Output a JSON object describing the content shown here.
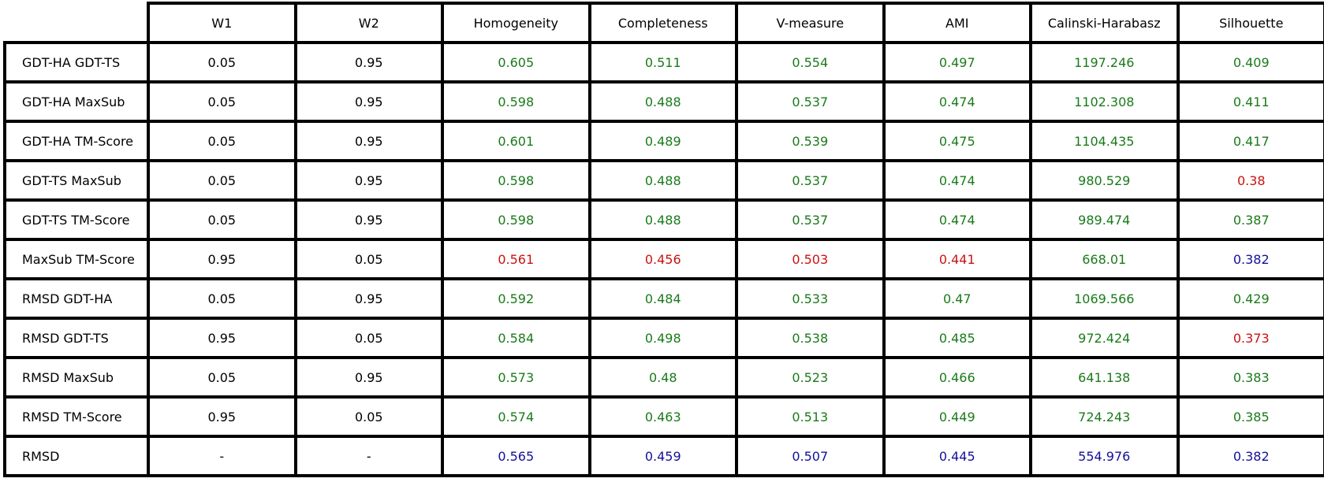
{
  "colors": {
    "best": "#1a7a1a",
    "worst": "#cc1111",
    "baseline": "#11119a",
    "neutral": "#000000"
  },
  "chart_data": {
    "type": "table",
    "columns": [
      "W1",
      "W2",
      "Homogeneity",
      "Completeness",
      "V-measure",
      "AMI",
      "Calinski-Harabasz",
      "Silhouette"
    ],
    "rows": [
      {
        "label": "GDT-HA GDT-TS",
        "values": [
          "0.05",
          "0.95",
          "0.605",
          "0.511",
          "0.554",
          "0.497",
          "1197.246",
          "0.409"
        ],
        "colors": [
          "neutral",
          "neutral",
          "best",
          "best",
          "best",
          "best",
          "best",
          "best"
        ]
      },
      {
        "label": "GDT-HA MaxSub",
        "values": [
          "0.05",
          "0.95",
          "0.598",
          "0.488",
          "0.537",
          "0.474",
          "1102.308",
          "0.411"
        ],
        "colors": [
          "neutral",
          "neutral",
          "best",
          "best",
          "best",
          "best",
          "best",
          "best"
        ]
      },
      {
        "label": "GDT-HA TM-Score",
        "values": [
          "0.05",
          "0.95",
          "0.601",
          "0.489",
          "0.539",
          "0.475",
          "1104.435",
          "0.417"
        ],
        "colors": [
          "neutral",
          "neutral",
          "best",
          "best",
          "best",
          "best",
          "best",
          "best"
        ]
      },
      {
        "label": "GDT-TS MaxSub",
        "values": [
          "0.05",
          "0.95",
          "0.598",
          "0.488",
          "0.537",
          "0.474",
          "980.529",
          "0.38"
        ],
        "colors": [
          "neutral",
          "neutral",
          "best",
          "best",
          "best",
          "best",
          "best",
          "worst"
        ]
      },
      {
        "label": "GDT-TS TM-Score",
        "values": [
          "0.05",
          "0.95",
          "0.598",
          "0.488",
          "0.537",
          "0.474",
          "989.474",
          "0.387"
        ],
        "colors": [
          "neutral",
          "neutral",
          "best",
          "best",
          "best",
          "best",
          "best",
          "best"
        ]
      },
      {
        "label": "MaxSub TM-Score",
        "values": [
          "0.95",
          "0.05",
          "0.561",
          "0.456",
          "0.503",
          "0.441",
          "668.01",
          "0.382"
        ],
        "colors": [
          "neutral",
          "neutral",
          "worst",
          "worst",
          "worst",
          "worst",
          "best",
          "baseline"
        ]
      },
      {
        "label": "RMSD GDT-HA",
        "values": [
          "0.05",
          "0.95",
          "0.592",
          "0.484",
          "0.533",
          "0.47",
          "1069.566",
          "0.429"
        ],
        "colors": [
          "neutral",
          "neutral",
          "best",
          "best",
          "best",
          "best",
          "best",
          "best"
        ]
      },
      {
        "label": "RMSD GDT-TS",
        "values": [
          "0.95",
          "0.05",
          "0.584",
          "0.498",
          "0.538",
          "0.485",
          "972.424",
          "0.373"
        ],
        "colors": [
          "neutral",
          "neutral",
          "best",
          "best",
          "best",
          "best",
          "best",
          "worst"
        ]
      },
      {
        "label": "RMSD MaxSub",
        "values": [
          "0.05",
          "0.95",
          "0.573",
          "0.48",
          "0.523",
          "0.466",
          "641.138",
          "0.383"
        ],
        "colors": [
          "neutral",
          "neutral",
          "best",
          "best",
          "best",
          "best",
          "best",
          "best"
        ]
      },
      {
        "label": "RMSD TM-Score",
        "values": [
          "0.95",
          "0.05",
          "0.574",
          "0.463",
          "0.513",
          "0.449",
          "724.243",
          "0.385"
        ],
        "colors": [
          "neutral",
          "neutral",
          "best",
          "best",
          "best",
          "best",
          "best",
          "best"
        ]
      },
      {
        "label": "RMSD",
        "values": [
          "-",
          "-",
          "0.565",
          "0.459",
          "0.507",
          "0.445",
          "554.976",
          "0.382"
        ],
        "colors": [
          "neutral",
          "neutral",
          "baseline",
          "baseline",
          "baseline",
          "baseline",
          "baseline",
          "baseline"
        ]
      }
    ]
  }
}
